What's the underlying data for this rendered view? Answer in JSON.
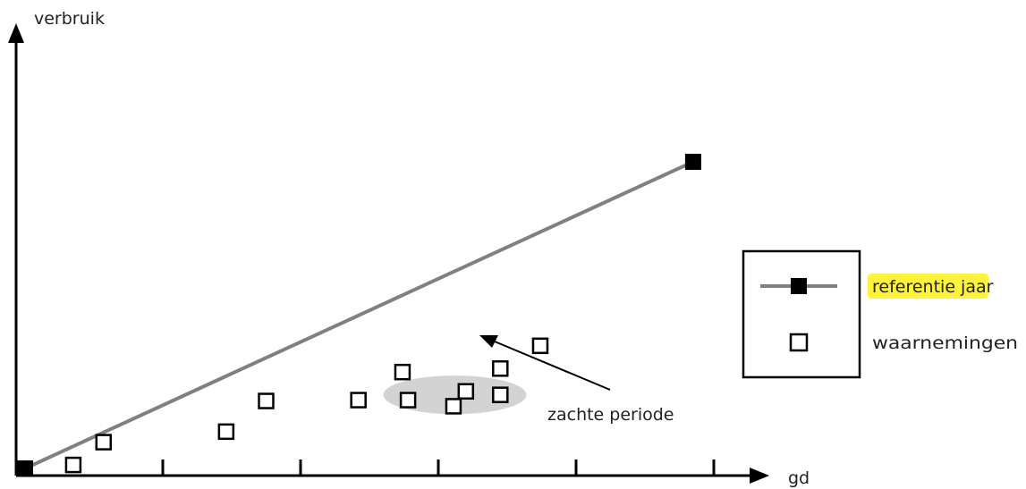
{
  "chart_data": {
    "type": "scatter",
    "xlabel": "gd",
    "ylabel": "verbruik",
    "title": "",
    "grid": false,
    "reference_line": {
      "name": "referentie jaar",
      "color": "#808080",
      "endpoint_color": "#000000",
      "points": [
        {
          "x": 0.0,
          "y": 0.0
        },
        {
          "x": 4.85,
          "y": 3.5
        }
      ]
    },
    "observations": {
      "name": "waarnemingen",
      "points": [
        {
          "x": 0.35,
          "y": 0.04
        },
        {
          "x": 0.57,
          "y": 0.3
        },
        {
          "x": 1.46,
          "y": 0.42
        },
        {
          "x": 1.75,
          "y": 0.77
        },
        {
          "x": 2.42,
          "y": 0.78
        },
        {
          "x": 2.74,
          "y": 1.1
        },
        {
          "x": 2.78,
          "y": 0.78
        },
        {
          "x": 3.11,
          "y": 0.71
        },
        {
          "x": 3.2,
          "y": 0.88
        },
        {
          "x": 3.45,
          "y": 0.84
        },
        {
          "x": 3.45,
          "y": 1.14
        },
        {
          "x": 3.74,
          "y": 1.4
        }
      ]
    },
    "soft_period": {
      "label": "zachte periode",
      "center": {
        "x": 3.12,
        "y": 0.84
      },
      "rx": 0.52,
      "ry": 0.22,
      "color": "#d3d3d3"
    },
    "x_ticks": [
      1,
      2,
      3,
      4,
      5
    ],
    "xlim": [
      0,
      5.4
    ],
    "ylim": [
      0,
      4.6
    ],
    "legend": {
      "placement": "right",
      "entries": [
        {
          "label": "referentie jaar",
          "marker": "filled-square-line",
          "highlight": "#fff23a"
        },
        {
          "label": "waarnemingen",
          "marker": "open-square"
        }
      ]
    }
  }
}
